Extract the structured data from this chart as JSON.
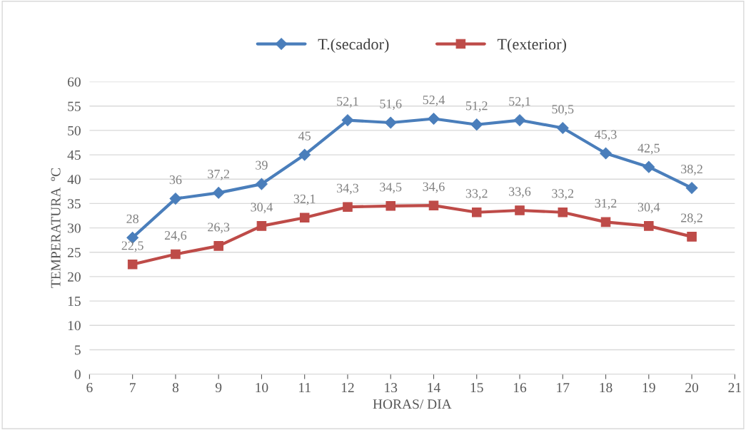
{
  "chart_data": {
    "type": "line",
    "xlabel": "HORAS/ DIA",
    "ylabel": "TEMPERATURA  ºC",
    "x": [
      7,
      8,
      9,
      10,
      11,
      12,
      13,
      14,
      15,
      16,
      17,
      18,
      19,
      20
    ],
    "xlim": [
      6,
      21
    ],
    "xticks": [
      6,
      7,
      8,
      9,
      10,
      11,
      12,
      13,
      14,
      15,
      16,
      17,
      18,
      19,
      20,
      21
    ],
    "ylim": [
      0,
      60
    ],
    "yticks": [
      0,
      5,
      10,
      15,
      20,
      25,
      30,
      35,
      40,
      45,
      50,
      55,
      60
    ],
    "grid": "y",
    "legend": "top",
    "series": [
      {
        "name": "T.(secador)",
        "color": "#4a7ebb",
        "marker": "diamond",
        "values": [
          28,
          36,
          37.2,
          39,
          45,
          52.1,
          51.6,
          52.4,
          51.2,
          52.1,
          50.5,
          45.3,
          42.5,
          38.2
        ],
        "value_labels": [
          "28",
          "36",
          "37,2",
          "39",
          "45",
          "52,1",
          "51,6",
          "52,4",
          "51,2",
          "52,1",
          "50,5",
          "45,3",
          "42,5",
          "38,2"
        ]
      },
      {
        "name": "T(exterior)",
        "color": "#be4b48",
        "marker": "square",
        "values": [
          22.5,
          24.6,
          26.3,
          30.4,
          32.1,
          34.3,
          34.5,
          34.6,
          33.2,
          33.6,
          33.2,
          31.2,
          30.4,
          28.2
        ],
        "value_labels": [
          "22,5",
          "24,6",
          "26,3",
          "30,4",
          "32,1",
          "34,3",
          "34,5",
          "34,6",
          "33,2",
          "33,6",
          "33,2",
          "31,2",
          "30,4",
          "28,2"
        ]
      }
    ]
  }
}
